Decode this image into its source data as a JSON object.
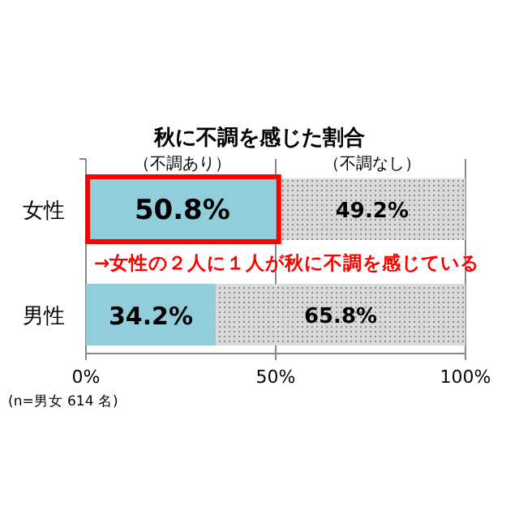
{
  "chart_data": {
    "type": "bar",
    "orientation": "horizontal",
    "stacked": true,
    "title": "秋に不調を感じた割合",
    "categories": [
      "女性",
      "男性"
    ],
    "series": [
      {
        "name": "（不調あり）",
        "color": "#92cddc",
        "values": [
          50.8,
          34.2
        ],
        "value_labels": [
          "50.8%",
          "34.2%"
        ]
      },
      {
        "name": "（不調なし）",
        "color": "#d9d9d9",
        "values": [
          49.2,
          65.8
        ],
        "value_labels": [
          "49.2%",
          "65.8%"
        ]
      }
    ],
    "xlim": [
      0,
      100
    ],
    "xticks": [
      {
        "value": 0,
        "label": "0%"
      },
      {
        "value": 50,
        "label": "50%"
      },
      {
        "value": 100,
        "label": "100%"
      }
    ],
    "grid": "x",
    "legend": false,
    "annotations": [
      "→女性の２人に１人が秋に不調を感じている",
      "(n=男女 614 名)"
    ]
  }
}
